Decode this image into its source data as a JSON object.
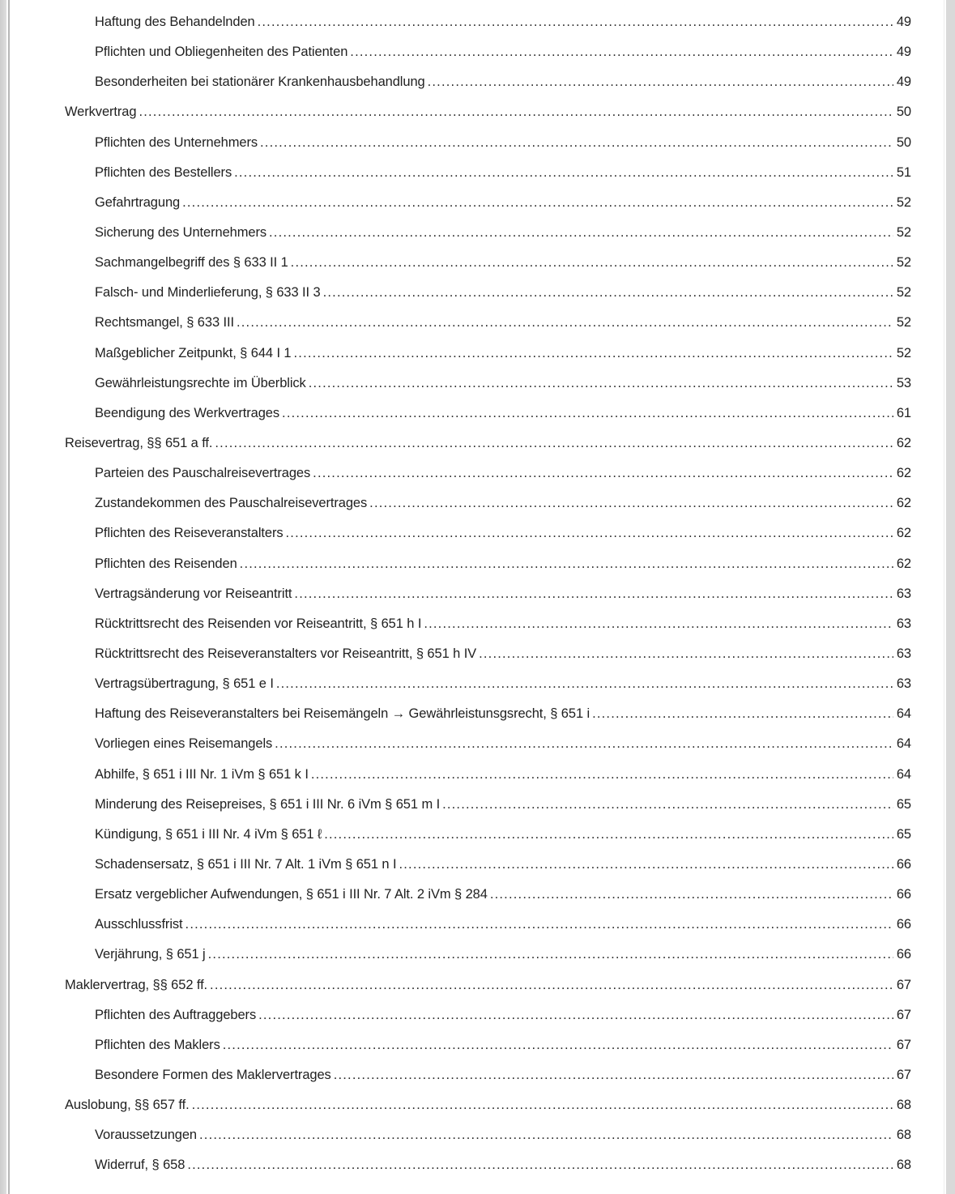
{
  "page": {
    "background_color": "#ffffff",
    "gutter_color": "#d9d9d9",
    "text_color": "#212121"
  },
  "toc": {
    "entries": [
      {
        "label": "Haftung des Behandelnden",
        "page": "49",
        "level": 2
      },
      {
        "label": "Pflichten und Obliegenheiten des Patienten",
        "page": "49",
        "level": 2
      },
      {
        "label": "Besonderheiten bei stationärer Krankenhausbehandlung",
        "page": "49",
        "level": 2
      },
      {
        "label": "Werkvertrag",
        "page": "50",
        "level": 1
      },
      {
        "label": "Pflichten des Unternehmers",
        "page": "50",
        "level": 2
      },
      {
        "label": "Pflichten des Bestellers",
        "page": "51",
        "level": 2
      },
      {
        "label": "Gefahrtragung",
        "page": "52",
        "level": 2
      },
      {
        "label": "Sicherung des Unternehmers",
        "page": "52",
        "level": 2
      },
      {
        "label": "Sachmangelbegriff des § 633 II 1",
        "page": "52",
        "level": 2
      },
      {
        "label": "Falsch- und Minderlieferung, § 633 II 3",
        "page": "52",
        "level": 2
      },
      {
        "label": "Rechtsmangel, § 633 III",
        "page": "52",
        "level": 2
      },
      {
        "label": "Maßgeblicher Zeitpunkt, § 644 I 1",
        "page": "52",
        "level": 2
      },
      {
        "label": "Gewährleistungsrechte im Überblick",
        "page": "53",
        "level": 2
      },
      {
        "label": "Beendigung des Werkvertrages",
        "page": "61",
        "level": 2
      },
      {
        "label": "Reisevertrag, §§ 651 a ff.",
        "page": "62",
        "level": 1
      },
      {
        "label": "Parteien des Pauschalreisevertrages",
        "page": "62",
        "level": 2
      },
      {
        "label": "Zustandekommen des Pauschalreisevertrages",
        "page": "62",
        "level": 2
      },
      {
        "label": "Pflichten des Reiseveranstalters",
        "page": "62",
        "level": 2
      },
      {
        "label": "Pflichten des Reisenden",
        "page": "62",
        "level": 2
      },
      {
        "label": "Vertragsänderung vor Reiseantritt",
        "page": "63",
        "level": 2
      },
      {
        "label": "Rücktrittsrecht des Reisenden vor Reiseantritt, § 651 h I",
        "page": "63",
        "level": 2
      },
      {
        "label": "Rücktrittsrecht des Reiseveranstalters vor Reiseantritt, § 651 h IV",
        "page": "63",
        "level": 2
      },
      {
        "label": "Vertragsübertragung, § 651 e I",
        "page": "63",
        "level": 2
      },
      {
        "label": "Haftung des Reiseveranstalters bei Reisemängeln → Gewährleistunsgsrecht, § 651 i",
        "page": "64",
        "level": 2
      },
      {
        "label": "Vorliegen eines Reisemangels",
        "page": "64",
        "level": 2
      },
      {
        "label": "Abhilfe, § 651 i III Nr. 1 iVm § 651 k I",
        "page": "64",
        "level": 2
      },
      {
        "label": "Minderung des Reisepreises, § 651 i III Nr. 6 iVm § 651 m I",
        "page": "65",
        "level": 2
      },
      {
        "label": "Kündigung, § 651 i III Nr. 4 iVm § 651 ℓ",
        "page": "65",
        "level": 2
      },
      {
        "label": "Schadensersatz, § 651 i III Nr. 7 Alt. 1 iVm § 651 n I",
        "page": "66",
        "level": 2
      },
      {
        "label": "Ersatz vergeblicher Aufwendungen, § 651 i III Nr. 7 Alt. 2 iVm § 284",
        "page": "66",
        "level": 2
      },
      {
        "label": "Ausschlussfrist",
        "page": "66",
        "level": 2
      },
      {
        "label": "Verjährung, § 651 j",
        "page": "66",
        "level": 2
      },
      {
        "label": "Maklervertrag, §§ 652 ff.",
        "page": "67",
        "level": 1
      },
      {
        "label": "Pflichten des Auftraggebers",
        "page": "67",
        "level": 2
      },
      {
        "label": "Pflichten des Maklers",
        "page": "67",
        "level": 2
      },
      {
        "label": "Besondere Formen des Maklervertrages",
        "page": "67",
        "level": 2
      },
      {
        "label": "Auslobung, §§ 657 ff.",
        "page": "68",
        "level": 1
      },
      {
        "label": "Voraussetzungen",
        "page": "68",
        "level": 2
      },
      {
        "label": "Widerruf, § 658",
        "page": "68",
        "level": 2
      }
    ]
  }
}
